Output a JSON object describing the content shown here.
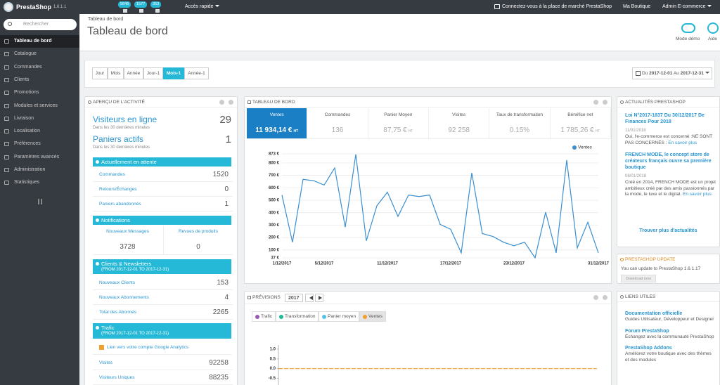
{
  "topbar": {
    "brand": "PrestaShop",
    "version": "1.6.1.1",
    "badges": [
      "5648",
      "1577",
      "353"
    ],
    "quick_access": "Accès rapide",
    "marketplace": "Connectez-vous à la place de marché PrestaShop",
    "shop": "Ma Boutique",
    "user": "Admin E-commerce"
  },
  "sidebar": {
    "search_placeholder": "Rechercher",
    "menu": [
      "Tableau de bord",
      "Catalogue",
      "Commandes",
      "Clients",
      "Promotions",
      "Modules et services",
      "Livraison",
      "Localisation",
      "Préférences",
      "Paramètres avancés",
      "Administration",
      "Statistiques"
    ]
  },
  "header": {
    "breadcrumb": "Tableau de bord",
    "title": "Tableau de bord",
    "actions": [
      "Mode démo",
      "Aide"
    ]
  },
  "period": {
    "buttons": [
      "Jour",
      "Mois",
      "Année",
      "Jour-1",
      "Mois-1",
      "Année-1"
    ],
    "date_range": {
      "from_label": "Du",
      "from": "2017-12-01",
      "to_label": "Au",
      "to": "2017-12-31"
    }
  },
  "activity": {
    "title": "APERÇU DE L'ACTIVITÉ",
    "online": {
      "label": "Visiteurs en ligne",
      "value": 29,
      "note": "Dans les 30 dernières minutes"
    },
    "carts": {
      "label": "Paniers actifs",
      "value": 1,
      "note": "Dans les 30 dernières minutes"
    },
    "pending": {
      "title": "Actuellement en attente",
      "rows": [
        [
          "Commandes",
          1520
        ],
        [
          "Retours/Échanges",
          0
        ],
        [
          "Paniers abandonnés",
          1
        ]
      ]
    },
    "notifications": {
      "title": "Notifications",
      "cols": [
        [
          "Nouveaux Messages",
          3728
        ],
        [
          "Revues de produits",
          0
        ]
      ]
    },
    "customers": {
      "title": "Clients & Newsletters",
      "subtitle": "(FROM 2017-12-01 TO 2017-12-31)",
      "rows": [
        [
          "Nouveaux Clients",
          153
        ],
        [
          "Nouveaux Abonnements",
          4
        ],
        [
          "Total des Abonnés",
          2265
        ]
      ]
    },
    "traffic": {
      "title": "Trafic",
      "subtitle": "(FROM 2017-12-01 TO 2017-12-31)",
      "link": "Lien vers votre compte Google Analytics",
      "rows": [
        [
          "Visites",
          92258
        ],
        [
          "Visiteurs Uniques",
          88235
        ]
      ]
    }
  },
  "dashboard": {
    "title": "TABLEAU DE BORD",
    "kpis": [
      {
        "label": "Ventes",
        "value": "11 934,14 €",
        "suffix": "HT"
      },
      {
        "label": "Commandes",
        "value": "136"
      },
      {
        "label": "Panier Moyen",
        "value": "87,75 €",
        "suffix": "HT"
      },
      {
        "label": "Visites",
        "value": "92 258"
      },
      {
        "label": "Taux de transformation",
        "value": "0.15%"
      },
      {
        "label": "Bénéfice net",
        "value": "1 785,26 €",
        "suffix": "HT"
      }
    ],
    "chart_data": {
      "type": "line",
      "legend": "top-right",
      "grid": true,
      "categories": [
        "1/12/2017",
        null,
        null,
        null,
        "5/12/2017",
        null,
        null,
        null,
        null,
        null,
        "11/12/2017",
        null,
        null,
        null,
        null,
        null,
        "17/12/2017",
        null,
        null,
        null,
        null,
        null,
        "23/12/2017",
        null,
        null,
        null,
        null,
        null,
        null,
        null,
        "31/12/2017"
      ],
      "series": [
        {
          "name": "Ventes",
          "color": "#3b8fd0",
          "values": [
            542,
            163,
            668,
            657,
            622,
            760,
            283,
            869,
            174,
            456,
            565,
            370,
            542,
            530,
            542,
            306,
            266,
            77,
            720,
            232,
            209,
            163,
            134,
            163,
            37,
            404,
            77,
            823,
            117,
            323,
            77
          ]
        }
      ],
      "ylim": [
        37,
        873
      ],
      "yticks": [
        {
          "value": 37,
          "label": "37 €"
        },
        {
          "value": 100,
          "label": "100 €"
        },
        {
          "value": 200,
          "label": "200 €"
        },
        {
          "value": 300,
          "label": "300 €"
        },
        {
          "value": 400,
          "label": "400 €"
        },
        {
          "value": 500,
          "label": "500 €"
        },
        {
          "value": 600,
          "label": "600 €"
        },
        {
          "value": 700,
          "label": "700 €"
        },
        {
          "value": 800,
          "label": "800 €"
        },
        {
          "value": 873,
          "label": "873 €"
        }
      ]
    }
  },
  "forecast": {
    "title": "PRÉVISIONS",
    "year": "2017",
    "chart_data": {
      "type": "line",
      "grid": false,
      "series": [
        {
          "name": "Trafic",
          "color": "#9b59b6"
        },
        {
          "name": "Transformation",
          "color": "#1abc9c"
        },
        {
          "name": "Panier moyen",
          "color": "#56c2ea"
        },
        {
          "name": "Ventes",
          "color": "#f0a030",
          "values": [
            0,
            0,
            0,
            0,
            0,
            0,
            0,
            0,
            0,
            0,
            0,
            0
          ]
        }
      ],
      "ylim": [
        -0.5,
        1
      ],
      "yticks": [
        {
          "value": 1,
          "label": "1.0"
        },
        0.5,
        {
          "value": 0,
          "label": "0.0"
        },
        -0.5
      ]
    }
  },
  "news": {
    "title": "ACTUALITÉS PRESTASHOP",
    "items": [
      {
        "title": "Loi N°2017-1837 Du 30/12/2017 De Finances Pour 2018",
        "date": "11/01/2018",
        "text": "Oui, l'e-commerce est concerné :NE SONT PAS CONCERNÉS :",
        "link": "En savoir plus"
      },
      {
        "title": "FRENCH MODE, le concept store de créateurs français ouvre sa première boutique",
        "date": "08/01/2018",
        "text": "Créé en 2014, FRENCH MODE est un projet ambitieux créé par des amis passionnés par la mode, le luxe et le digital.",
        "link": "En savoir plus"
      }
    ],
    "more": "Trouver plus d'actualités"
  },
  "update": {
    "title": "PRESTASHOP UPDATE",
    "text": "You can update to PrestaShop 1.6.1.17",
    "button": "Download now"
  },
  "links": {
    "title": "LIENS UTILES",
    "items": [
      {
        "title": "Documentation officielle",
        "text": "Guides Utilisateur, Développeur et Designer"
      },
      {
        "title": "Forum PrestaShop",
        "text": "Échangez avec la communauté PrestaShop"
      },
      {
        "title": "PrestaShop Addons",
        "text": "Améliorez votre boutique avec des thèmes et des modules"
      }
    ]
  }
}
